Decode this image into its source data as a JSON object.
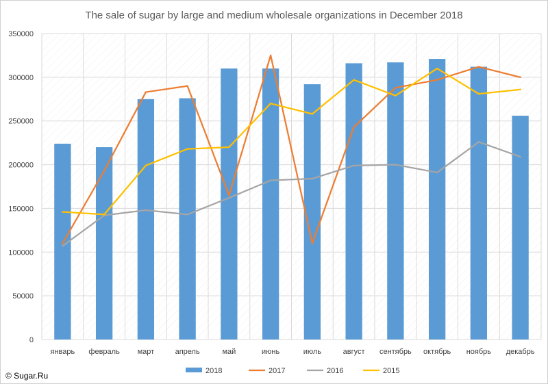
{
  "chart_data": {
    "type": "bar",
    "title": "The sale of sugar by large and medium wholesale organizations in December 2018",
    "categories": [
      "январь",
      "февраль",
      "март",
      "апрель",
      "май",
      "июнь",
      "июль",
      "август",
      "сентябрь",
      "октябрь",
      "ноябрь",
      "декабрь"
    ],
    "ylim": [
      0,
      350000
    ],
    "yticks": [
      0,
      50000,
      100000,
      150000,
      200000,
      250000,
      300000,
      350000
    ],
    "grid": true,
    "legend_position": "bottom",
    "series": [
      {
        "name": "2018",
        "kind": "bar",
        "color": "#5b9bd5",
        "values": [
          224000,
          220000,
          275000,
          276000,
          310000,
          310000,
          292000,
          316000,
          317000,
          321000,
          312000,
          256000
        ]
      },
      {
        "name": "2017",
        "kind": "line",
        "color": "#ed7d31",
        "values": [
          110000,
          193000,
          283000,
          290000,
          165000,
          325000,
          110000,
          243000,
          288000,
          297000,
          312000,
          300000
        ]
      },
      {
        "name": "2016",
        "kind": "line",
        "color": "#a5a5a5",
        "values": [
          107000,
          142000,
          148000,
          143000,
          162000,
          182000,
          184000,
          199000,
          200000,
          191000,
          226000,
          209000
        ]
      },
      {
        "name": "2015",
        "kind": "line",
        "color": "#ffc000",
        "values": [
          146000,
          143000,
          199000,
          218000,
          220000,
          270000,
          258000,
          297000,
          279000,
          310000,
          281000,
          286000
        ]
      }
    ]
  },
  "credit": "© Sugar.Ru"
}
